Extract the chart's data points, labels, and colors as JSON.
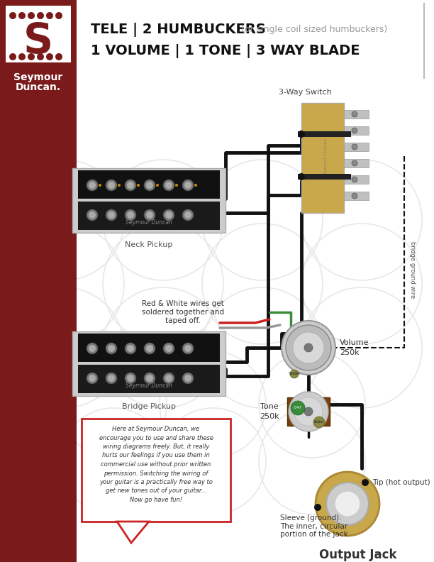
{
  "title_line1_bold": "TELE | 2 HUMBUCKERS",
  "title_line1_light": " (or single coil sized humbuckers)",
  "title_line2": "1 VOLUME | 1 TONE | 3 WAY BLADE",
  "bg_color": "#ffffff",
  "sidebar_color": "#7a1a1a",
  "neck_label": "Neck Pickup",
  "bridge_label": "Bridge Pickup",
  "switch_label": "3-Way Switch",
  "volume_label": "Volume\n250k",
  "tone_label": "Tone\n250k",
  "output_label": "Output Jack",
  "tip_label": "Tip (hot output)",
  "sleeve_label": "Sleeve (ground).\nThe inner, circular\nportion of the jack",
  "bridge_ground_label": "bridge ground wire",
  "red_white_label": "Red & White wires get\nsoldered together and\ntaped off.",
  "disclaimer_text": "Here at Seymour Duncan, we\nencourage you to use and share these\nwiring diagrams freely. But, it really\nhurts our feelings if you use them in\ncommercial use without prior written\npermission. Switching the wiring of\nyour guitar is a practically free way to\nget new tones out of your guitar...\nNow go have fun!",
  "wire_black": "#111111",
  "wire_green": "#3a8a3a",
  "wire_red": "#cc2222",
  "wire_white": "#e8e8e8",
  "component_gold": "#c8a84b",
  "component_silver": "#c0c0c0"
}
